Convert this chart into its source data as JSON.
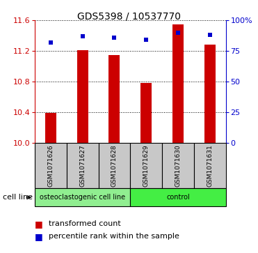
{
  "title": "GDS5398 / 10537770",
  "samples": [
    "GSM1071626",
    "GSM1071627",
    "GSM1071628",
    "GSM1071629",
    "GSM1071630",
    "GSM1071631"
  ],
  "bar_values": [
    10.39,
    11.21,
    11.15,
    10.78,
    11.55,
    11.28
  ],
  "percentile_values": [
    82,
    87,
    86,
    84,
    90,
    88
  ],
  "bar_bottom": 10.0,
  "ylim_left": [
    10.0,
    11.6
  ],
  "ylim_right": [
    0,
    100
  ],
  "yticks_left": [
    10.0,
    10.4,
    10.8,
    11.2,
    11.6
  ],
  "yticks_right": [
    0,
    25,
    50,
    75,
    100
  ],
  "ytick_labels_right": [
    "0",
    "25",
    "50",
    "75",
    "100%"
  ],
  "bar_color": "#cc0000",
  "dot_color": "#0000cc",
  "bar_width": 0.35,
  "group1_indices": [
    0,
    1,
    2
  ],
  "group1_label": "osteoclastogenic cell line",
  "group1_color": "#90ee90",
  "group2_indices": [
    3,
    4,
    5
  ],
  "group2_label": "control",
  "group2_color": "#44ee44",
  "cell_line_label": "cell line",
  "legend1_label": "transformed count",
  "legend2_label": "percentile rank within the sample",
  "axis_left_color": "#cc0000",
  "axis_right_color": "#0000cc",
  "bg_label_boxes": "#c8c8c8",
  "title_fontsize": 10,
  "tick_fontsize": 8,
  "sample_fontsize": 6.5,
  "group_fontsize": 7,
  "legend_fontsize": 8,
  "cell_line_fontsize": 8
}
